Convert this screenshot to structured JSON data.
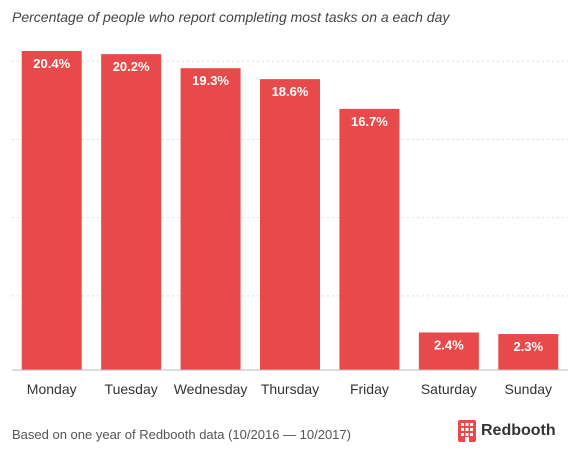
{
  "colors": {
    "bar": "#E84A4B",
    "bar_label": "#FFFFFF",
    "grid": "#DDDDDD",
    "axis": "#BBBBBB",
    "tick_label": "#333333",
    "brand": "#E84A4B"
  },
  "footer": {
    "note": "Based on one year of Redbooth data (10/2016 — 10/2017)",
    "brand_name": "Redbooth",
    "brand_icon": "redbooth-building-icon"
  },
  "chart_data": {
    "type": "bar",
    "title": "Percentage of people who report completing most tasks on a each day",
    "xlabel": "",
    "ylabel": "",
    "categories": [
      "Monday",
      "Tuesday",
      "Wednesday",
      "Thursday",
      "Friday",
      "Saturday",
      "Sunday"
    ],
    "values": [
      20.4,
      20.2,
      19.3,
      18.6,
      16.7,
      2.4,
      2.3
    ],
    "data_labels": [
      "20.4%",
      "20.2%",
      "19.3%",
      "18.6%",
      "16.7%",
      "2.4%",
      "2.3%"
    ],
    "ylim": [
      0,
      20.4
    ],
    "y_gridlines": [
      0,
      5,
      10,
      15,
      20
    ],
    "grid": true,
    "legend": "none"
  }
}
